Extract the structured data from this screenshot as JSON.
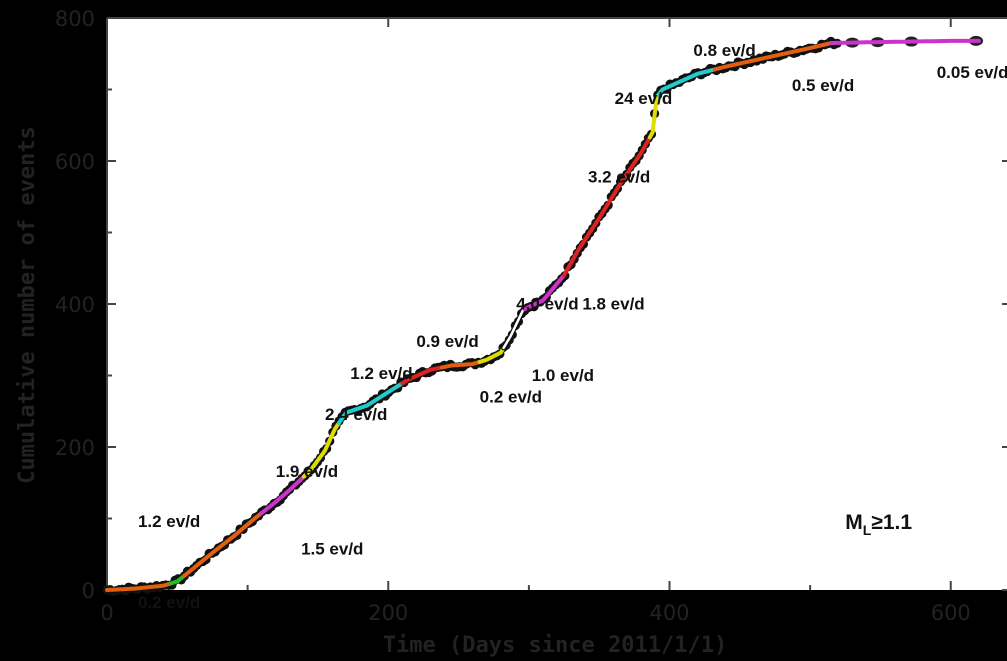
{
  "chart_data": {
    "type": "line",
    "title": "",
    "xlabel": "Time (Days since 2011/1/1)",
    "ylabel": "Cumulative number of events",
    "xlim": [
      0,
      640
    ],
    "ylim": [
      0,
      800
    ],
    "x_ticks": [
      0,
      200,
      400,
      600
    ],
    "y_ticks": [
      0,
      200,
      400,
      600,
      800
    ],
    "x_tick_labels": [
      "0",
      "200",
      "400",
      "600"
    ],
    "y_tick_labels": [
      "0",
      "200",
      "400",
      "600",
      "800"
    ],
    "grid": false,
    "magnitude_label": {
      "prefix": "M",
      "subscript": "L",
      "suffix": "≥1.1"
    },
    "cumulative_curve": [
      [
        0,
        0
      ],
      [
        20,
        2
      ],
      [
        40,
        6
      ],
      [
        50,
        12
      ],
      [
        60,
        28
      ],
      [
        75,
        52
      ],
      [
        90,
        75
      ],
      [
        105,
        100
      ],
      [
        118,
        120
      ],
      [
        130,
        140
      ],
      [
        145,
        168
      ],
      [
        155,
        195
      ],
      [
        162,
        225
      ],
      [
        170,
        248
      ],
      [
        185,
        258
      ],
      [
        205,
        283
      ],
      [
        215,
        295
      ],
      [
        230,
        308
      ],
      [
        245,
        314
      ],
      [
        260,
        316
      ],
      [
        270,
        322
      ],
      [
        280,
        332
      ],
      [
        287,
        355
      ],
      [
        296,
        392
      ],
      [
        310,
        405
      ],
      [
        325,
        440
      ],
      [
        335,
        475
      ],
      [
        350,
        520
      ],
      [
        365,
        568
      ],
      [
        380,
        612
      ],
      [
        388,
        640
      ],
      [
        391,
        690
      ],
      [
        395,
        700
      ],
      [
        420,
        722
      ],
      [
        440,
        732
      ],
      [
        470,
        745
      ],
      [
        500,
        758
      ],
      [
        515,
        765
      ],
      [
        540,
        766
      ],
      [
        570,
        767
      ],
      [
        600,
        768
      ],
      [
        620,
        768
      ]
    ],
    "segments": [
      {
        "rate": "0.2 ev/d",
        "x_start": 0,
        "x_end": 45,
        "color": "#e06010"
      },
      {
        "rate": "1.2 ev/d",
        "x_start": 45,
        "x_end": 55,
        "color": "#22bb22"
      },
      {
        "rate": "1.5 ev/d",
        "x_start": 55,
        "x_end": 110,
        "color": "#e06010"
      },
      {
        "rate": "1.9 ev/d",
        "x_start": 110,
        "x_end": 140,
        "color": "#cc33cc"
      },
      {
        "rate": "2.4 ev/d",
        "x_start": 140,
        "x_end": 165,
        "color": "#dddd00"
      },
      {
        "rate": "1.2 ev/d",
        "x_start": 165,
        "x_end": 210,
        "color": "#22cccc"
      },
      {
        "rate": "0.9 ev/d",
        "x_start": 210,
        "x_end": 238,
        "color": "#dd2222"
      },
      {
        "rate": "0.2 ev/d",
        "x_start": 238,
        "x_end": 265,
        "color": "#e06010"
      },
      {
        "rate": "1.0 ev/d",
        "x_start": 265,
        "x_end": 282,
        "color": "#dddd00"
      },
      {
        "rate": "4.0 ev/d",
        "x_start": 282,
        "x_end": 297,
        "color": "#ffffff"
      },
      {
        "rate": "1.8 ev/d",
        "x_start": 297,
        "x_end": 325,
        "color": "#cc33cc"
      },
      {
        "rate": "3.2 ev/d",
        "x_start": 325,
        "x_end": 386,
        "color": "#dd2222"
      },
      {
        "rate": "24 ev/d",
        "x_start": 386,
        "x_end": 392,
        "color": "#dddd00"
      },
      {
        "rate": "0.8 ev/d",
        "x_start": 392,
        "x_end": 432,
        "color": "#22cccc"
      },
      {
        "rate": "0.5 ev/d",
        "x_start": 432,
        "x_end": 515,
        "color": "#e06010"
      },
      {
        "rate": "0.05 ev/d",
        "x_start": 515,
        "x_end": 620,
        "color": "#cc33cc"
      }
    ],
    "annotations": [
      {
        "text": "0.2 ev/d",
        "x": 22,
        "y": -25
      },
      {
        "text": "1.2 ev/d",
        "x": 22,
        "y": 88
      },
      {
        "text": "1.5 ev/d",
        "x": 138,
        "y": 50
      },
      {
        "text": "1.9 ev/d",
        "x": 120,
        "y": 158
      },
      {
        "text": "2.4 ev/d",
        "x": 155,
        "y": 238
      },
      {
        "text": "1.2 ev/d",
        "x": 173,
        "y": 295
      },
      {
        "text": "0.9 ev/d",
        "x": 220,
        "y": 340
      },
      {
        "text": "0.2 ev/d",
        "x": 265,
        "y": 262
      },
      {
        "text": "1.0 ev/d",
        "x": 302,
        "y": 292
      },
      {
        "text": "4.0 ev/d",
        "x": 291,
        "y": 392
      },
      {
        "text": "1.8 ev/d",
        "x": 338,
        "y": 392
      },
      {
        "text": "3.2 ev/d",
        "x": 342,
        "y": 570
      },
      {
        "text": "24 ev/d",
        "x": 361,
        "y": 680
      },
      {
        "text": "0.8 ev/d",
        "x": 417,
        "y": 747
      },
      {
        "text": "0.5 ev/d",
        "x": 487,
        "y": 698
      },
      {
        "text": "0.05 ev/d",
        "x": 590,
        "y": 716
      }
    ],
    "magnitude_label_pos": {
      "x": 525,
      "y": 85
    }
  }
}
